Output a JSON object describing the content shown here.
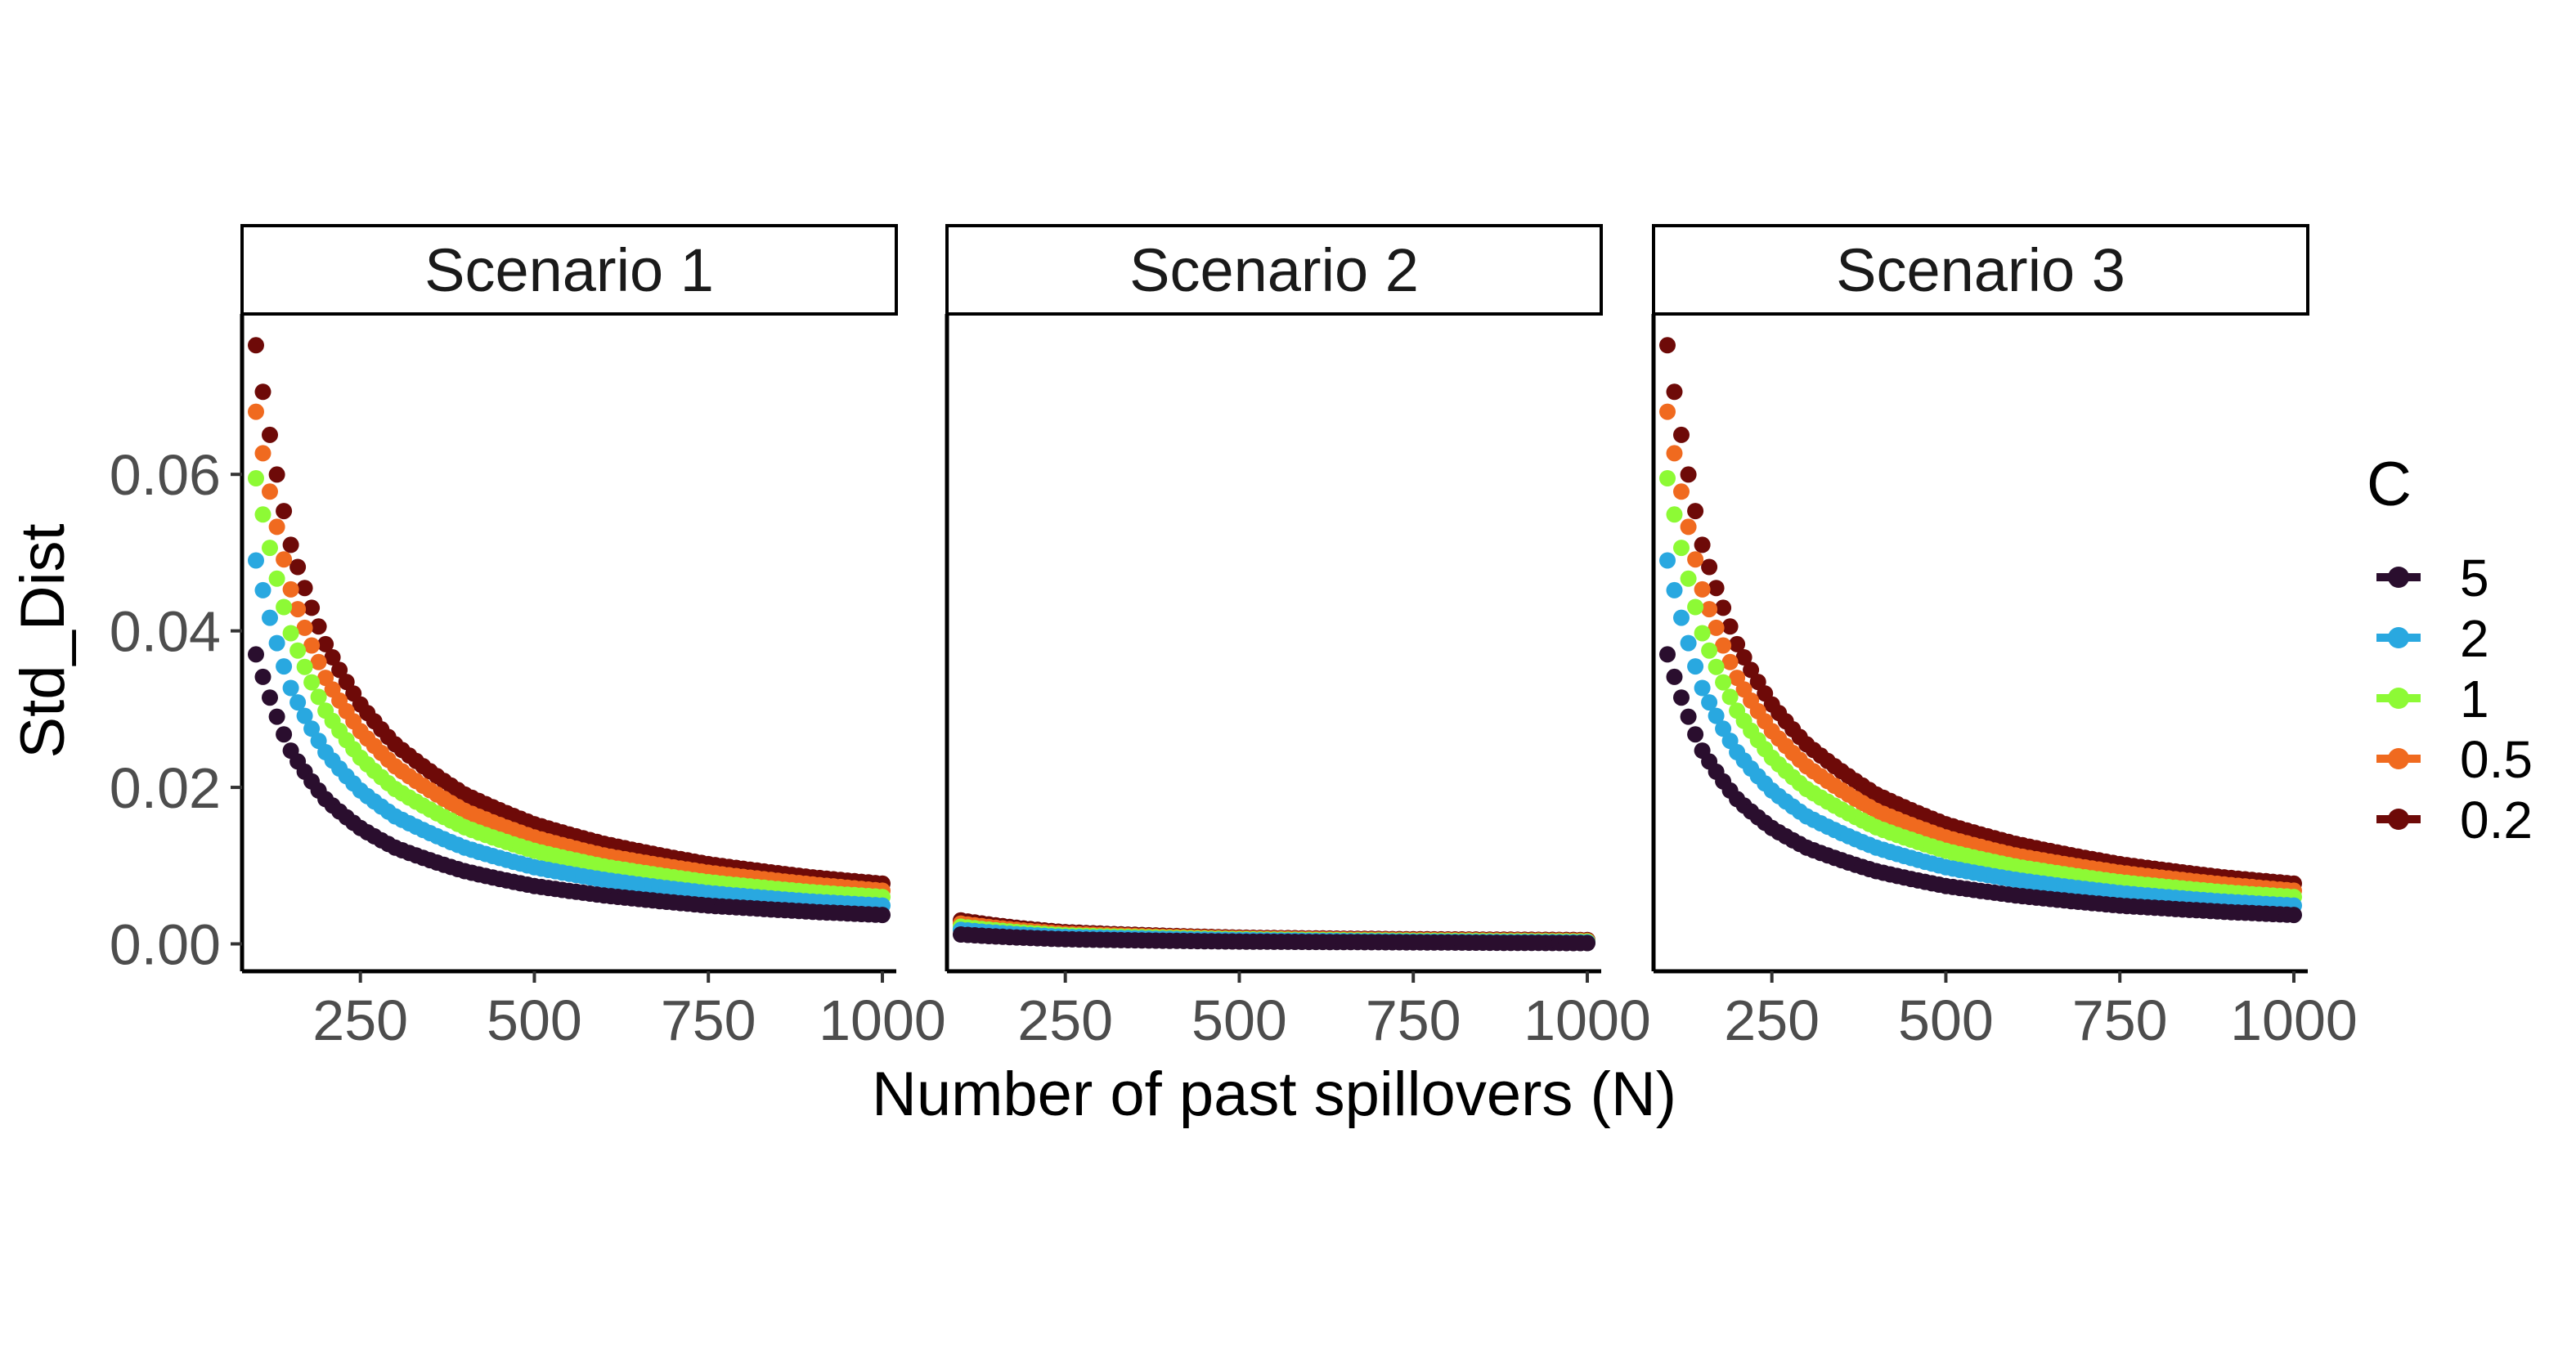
{
  "chart_data": {
    "type": "scatter",
    "facets": [
      "Scenario 1",
      "Scenario 2",
      "Scenario 3"
    ],
    "xlabel": "Number of past spillovers (N)",
    "ylabel": "Std_Dist",
    "xlim": [
      80,
      1020
    ],
    "ylim": [
      -0.0035,
      0.0805
    ],
    "x_ticks": [
      250,
      500,
      750,
      1000
    ],
    "x_tick_labels": [
      "250",
      "500",
      "750",
      "1000"
    ],
    "y_ticks": [
      0.0,
      0.02,
      0.04,
      0.06
    ],
    "y_tick_labels": [
      "0.00",
      "0.02",
      "0.04",
      "0.06"
    ],
    "grid": false,
    "legend": {
      "title": "C",
      "position": "right",
      "entries": [
        "5",
        "2",
        "1",
        "0.5",
        "0.2"
      ]
    },
    "x_range": {
      "start": 100,
      "end": 1000,
      "step": 10
    },
    "series": [
      {
        "name": "5",
        "color": "#2a0e2e",
        "values_by_facet": {
          "Scenario 1": {
            "x": [
              100,
              150,
              200,
              250,
              300,
              400,
              500,
              600,
              750,
              900,
              1000
            ],
            "y": [
              0.037,
              0.0247,
              0.0185,
              0.0148,
              0.0123,
              0.0093,
              0.0074,
              0.0062,
              0.0049,
              0.0041,
              0.0037
            ]
          },
          "Scenario 2": {
            "x": [
              100,
              250,
              500,
              750,
              1000
            ],
            "y": [
              0.0012,
              0.0006,
              0.0003,
              0.0002,
              0.0001
            ]
          },
          "Scenario 3": {
            "x": [
              100,
              150,
              200,
              250,
              300,
              400,
              500,
              600,
              750,
              900,
              1000
            ],
            "y": [
              0.037,
              0.0247,
              0.0185,
              0.0148,
              0.0123,
              0.0093,
              0.0074,
              0.0062,
              0.0049,
              0.0041,
              0.0037
            ]
          }
        }
      },
      {
        "name": "2",
        "color": "#29a8e0",
        "values_by_facet": {
          "Scenario 1": {
            "x": [
              100,
              150,
              200,
              250,
              300,
              400,
              500,
              600,
              750,
              900,
              1000
            ],
            "y": [
              0.049,
              0.0327,
              0.0245,
              0.0196,
              0.0163,
              0.0123,
              0.0098,
              0.0082,
              0.0065,
              0.0054,
              0.0049
            ]
          },
          "Scenario 2": {
            "x": [
              100,
              250,
              500,
              750,
              1000
            ],
            "y": [
              0.0018,
              0.0009,
              0.0005,
              0.0003,
              0.0002
            ]
          },
          "Scenario 3": {
            "x": [
              100,
              150,
              200,
              250,
              300,
              400,
              500,
              600,
              750,
              900,
              1000
            ],
            "y": [
              0.049,
              0.0327,
              0.0245,
              0.0196,
              0.0163,
              0.0123,
              0.0098,
              0.0082,
              0.0065,
              0.0054,
              0.0049
            ]
          }
        }
      },
      {
        "name": "1",
        "color": "#8dfa35",
        "values_by_facet": {
          "Scenario 1": {
            "x": [
              100,
              150,
              200,
              250,
              300,
              400,
              500,
              600,
              750,
              900,
              1000
            ],
            "y": [
              0.0595,
              0.0397,
              0.0298,
              0.0238,
              0.0198,
              0.0149,
              0.0119,
              0.0099,
              0.0079,
              0.0066,
              0.006
            ]
          },
          "Scenario 2": {
            "x": [
              100,
              250,
              500,
              750,
              1000
            ],
            "y": [
              0.0022,
              0.0011,
              0.0006,
              0.0004,
              0.0003
            ]
          },
          "Scenario 3": {
            "x": [
              100,
              150,
              200,
              250,
              300,
              400,
              500,
              600,
              750,
              900,
              1000
            ],
            "y": [
              0.0595,
              0.0397,
              0.0298,
              0.0238,
              0.0198,
              0.0149,
              0.0119,
              0.0099,
              0.0079,
              0.0066,
              0.006
            ]
          }
        }
      },
      {
        "name": "0.5",
        "color": "#f06a1f",
        "values_by_facet": {
          "Scenario 1": {
            "x": [
              100,
              150,
              200,
              250,
              300,
              400,
              500,
              600,
              750,
              900,
              1000
            ],
            "y": [
              0.068,
              0.0453,
              0.034,
              0.0272,
              0.0227,
              0.017,
              0.0136,
              0.0113,
              0.0091,
              0.0076,
              0.0068
            ]
          },
          "Scenario 2": {
            "x": [
              100,
              250,
              500,
              750,
              1000
            ],
            "y": [
              0.0026,
              0.0013,
              0.0007,
              0.0005,
              0.0004
            ]
          },
          "Scenario 3": {
            "x": [
              100,
              150,
              200,
              250,
              300,
              400,
              500,
              600,
              750,
              900,
              1000
            ],
            "y": [
              0.068,
              0.0453,
              0.034,
              0.0272,
              0.0227,
              0.017,
              0.0136,
              0.0113,
              0.0091,
              0.0076,
              0.0068
            ]
          }
        }
      },
      {
        "name": "0.2",
        "color": "#6e0a08",
        "values_by_facet": {
          "Scenario 1": {
            "x": [
              100,
              150,
              200,
              250,
              300,
              400,
              500,
              600,
              750,
              900,
              1000
            ],
            "y": [
              0.0765,
              0.051,
              0.0383,
              0.0306,
              0.0255,
              0.0191,
              0.0153,
              0.0128,
              0.0102,
              0.0085,
              0.0077
            ]
          },
          "Scenario 2": {
            "x": [
              100,
              250,
              500,
              750,
              1000
            ],
            "y": [
              0.003,
              0.0015,
              0.0008,
              0.0006,
              0.0005
            ]
          },
          "Scenario 3": {
            "x": [
              100,
              150,
              200,
              250,
              300,
              400,
              500,
              600,
              750,
              900,
              1000
            ],
            "y": [
              0.0765,
              0.051,
              0.0383,
              0.0306,
              0.0255,
              0.0191,
              0.0153,
              0.0128,
              0.0102,
              0.0085,
              0.0077
            ]
          }
        }
      }
    ]
  }
}
